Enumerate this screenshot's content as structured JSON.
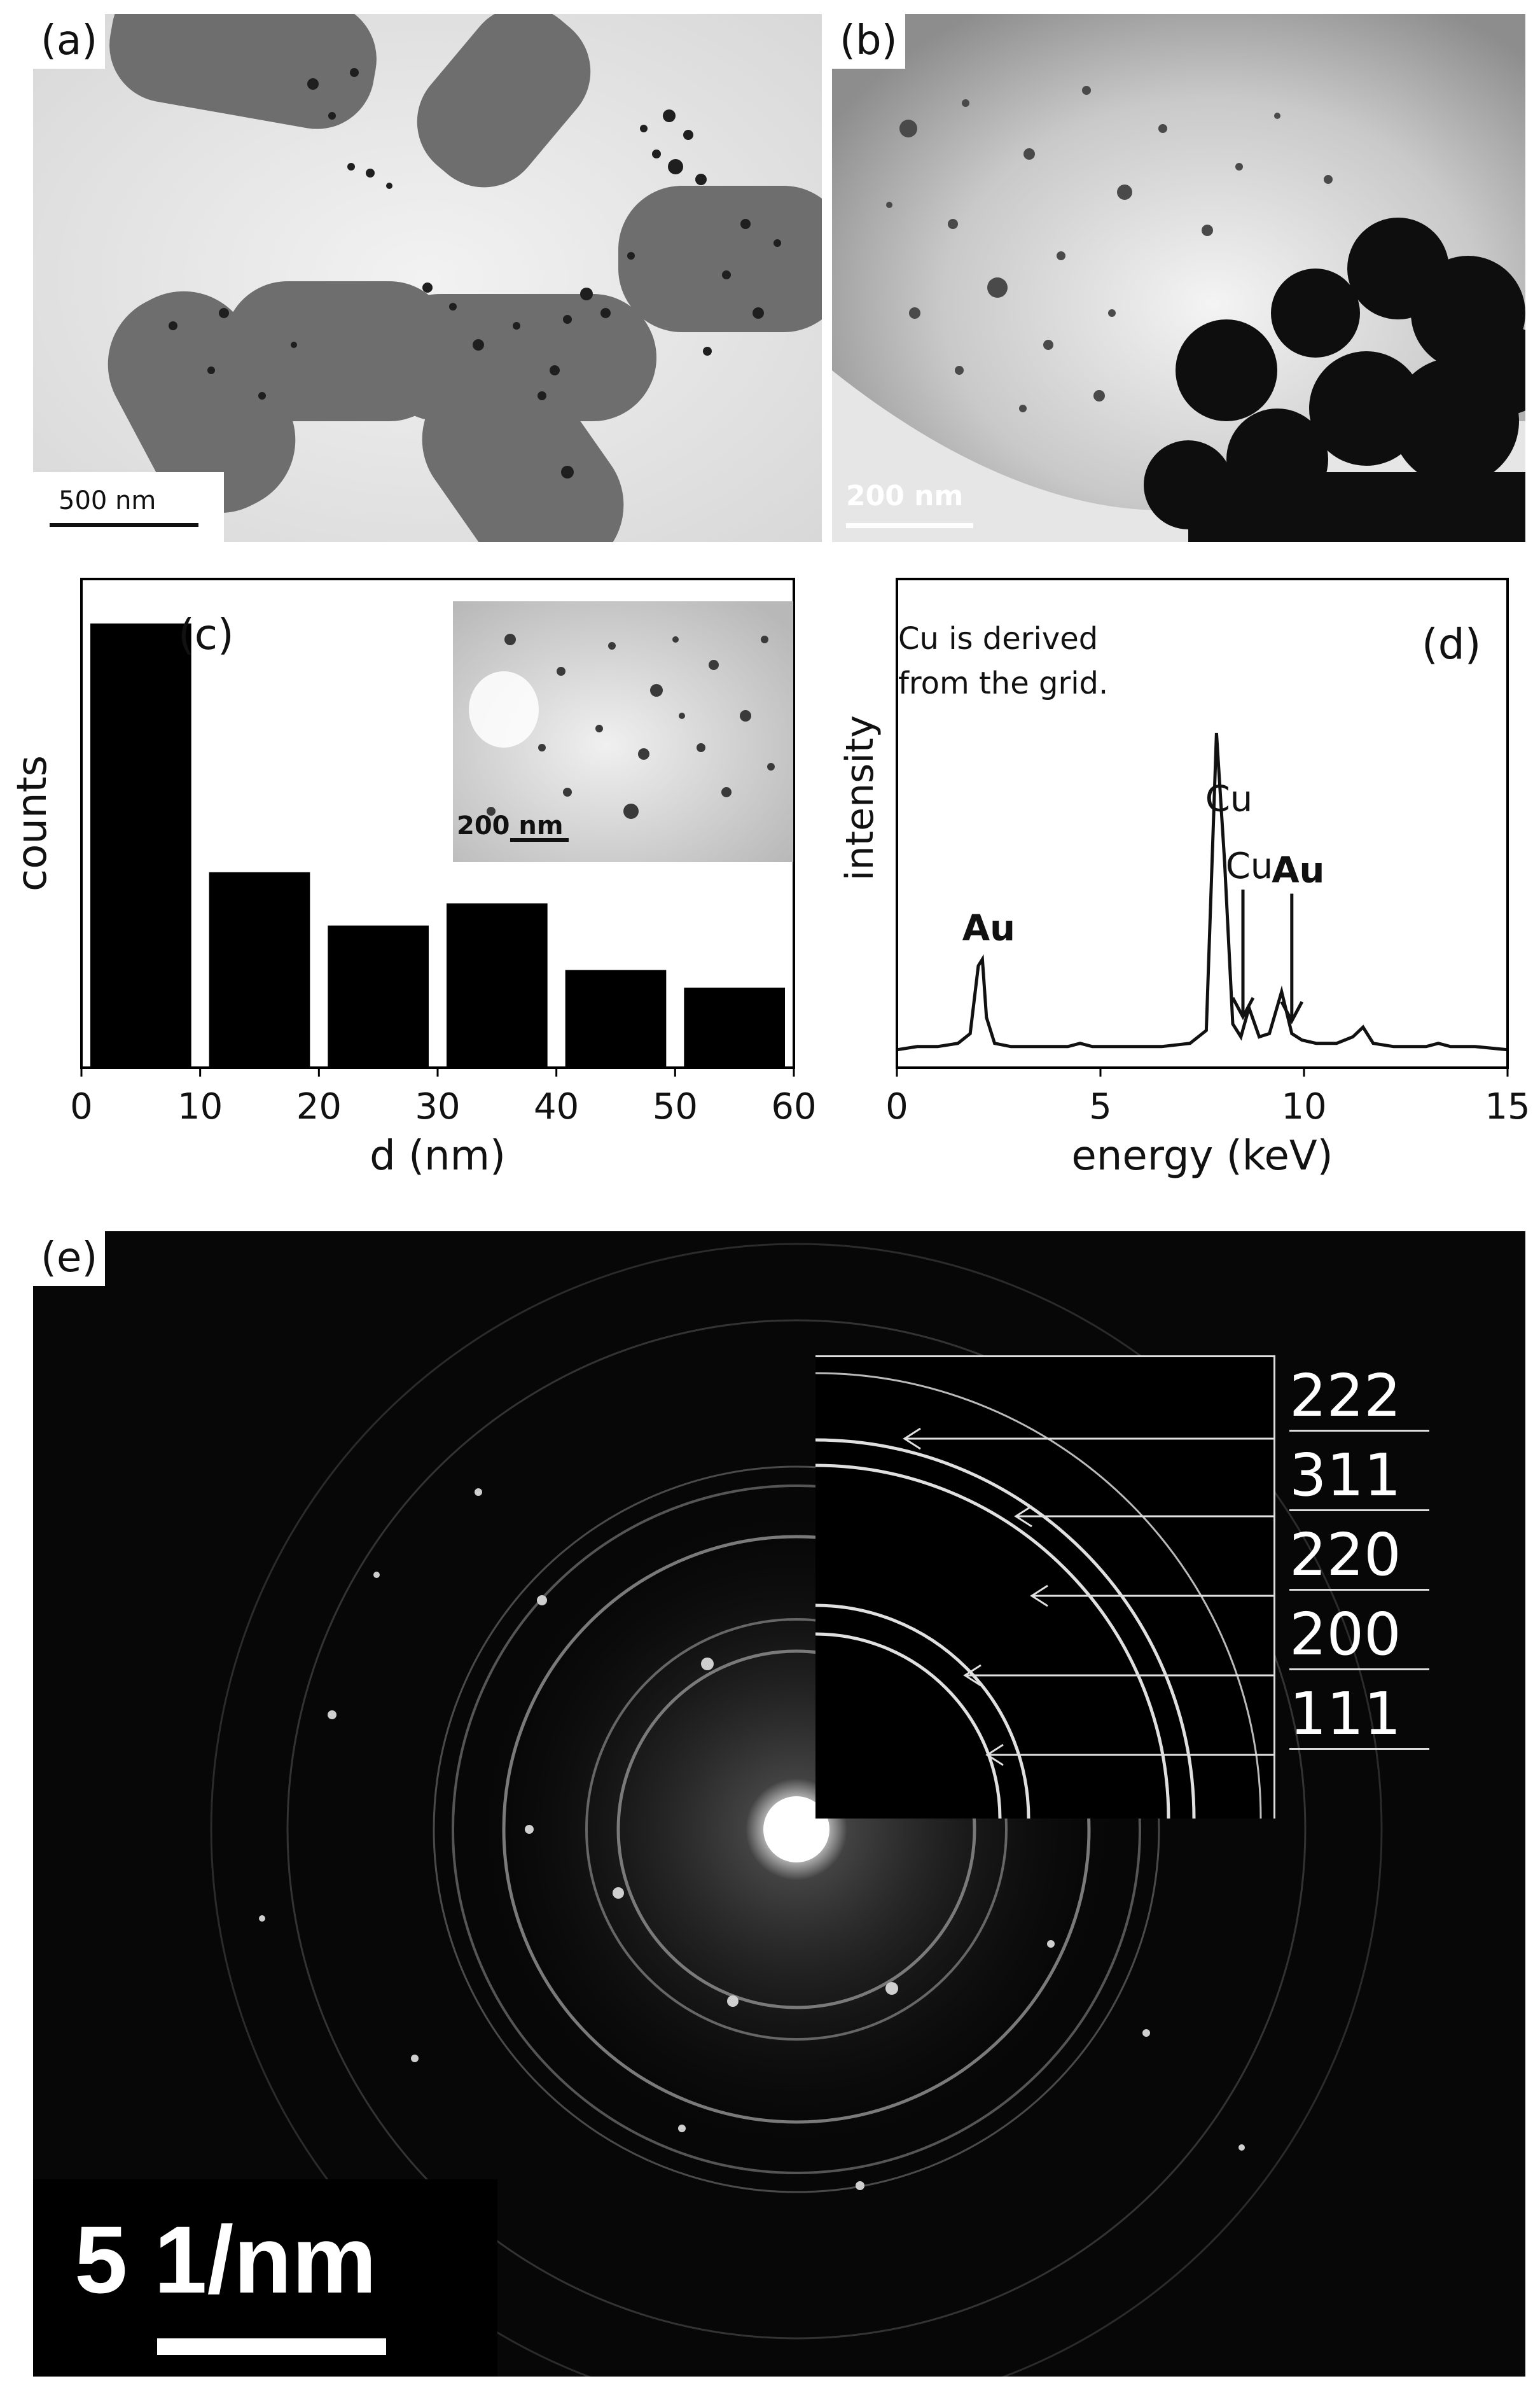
{
  "panels": {
    "a": {
      "label": "(a)",
      "scale_bar": "500 nm"
    },
    "b": {
      "label": "(b)",
      "scale_bar": "200 nm"
    },
    "c": {
      "label": "(c)",
      "inset_scale_bar": "200 nm"
    },
    "d": {
      "label": "(d)",
      "note_line1": "Cu is derived",
      "note_line2": "from the grid."
    },
    "e": {
      "label": "(e)",
      "scale_bar": "5 1/nm",
      "rings": [
        "222",
        "311",
        "220",
        "200",
        "111"
      ]
    }
  },
  "chart_data": [
    {
      "type": "bar",
      "panel": "c",
      "categories": [
        "0-10",
        "10-20",
        "20-30",
        "30-40",
        "40-50",
        "50-60"
      ],
      "values": [
        100,
        44,
        32,
        37,
        22,
        18
      ],
      "bin_edges": [
        0,
        10,
        20,
        30,
        40,
        50,
        60
      ],
      "xlabel": "d (nm)",
      "ylabel": "counts",
      "xlim": [
        0,
        60
      ],
      "ylim": [
        0,
        110
      ],
      "xticks": [
        "0",
        "10",
        "20",
        "30",
        "40",
        "50",
        "60"
      ],
      "bar_color": "#000000"
    },
    {
      "type": "line",
      "panel": "d",
      "xlabel": "energy (keV)",
      "ylabel": "intensity",
      "xlim": [
        0,
        15
      ],
      "ylim": [
        0,
        100
      ],
      "xticks": [
        "0",
        "5",
        "10",
        "15"
      ],
      "series": [
        {
          "x": [
            0.0,
            0.5,
            1.0,
            1.5,
            1.8,
            2.0,
            2.1,
            2.2,
            2.4,
            2.8,
            3.5,
            4.2,
            4.5,
            4.8,
            5.5,
            6.5,
            7.2,
            7.6,
            7.85,
            8.05,
            8.25,
            8.45,
            8.65,
            8.9,
            9.15,
            9.45,
            9.7,
            9.95,
            10.3,
            10.8,
            11.2,
            11.45,
            11.7,
            12.2,
            13.0,
            13.3,
            13.6,
            14.2,
            15.0
          ],
          "y": [
            2,
            3,
            3,
            4,
            7,
            28,
            30,
            12,
            4,
            3,
            3,
            3,
            4,
            3,
            3,
            3,
            4,
            8,
            100,
            60,
            10,
            6,
            15,
            6,
            7,
            20,
            7,
            5,
            4,
            4,
            6,
            9,
            4,
            3,
            3,
            4,
            3,
            3,
            2
          ]
        }
      ],
      "annotations": [
        {
          "text": "Cu",
          "x": 8.0,
          "bold": false
        },
        {
          "text": "Cu",
          "x": 8.5,
          "bold": false,
          "arrow": true
        },
        {
          "text": "Au",
          "x": 9.7,
          "bold": true,
          "arrow": true
        },
        {
          "text": "Au",
          "x": 2.1,
          "bold": true
        }
      ]
    }
  ]
}
